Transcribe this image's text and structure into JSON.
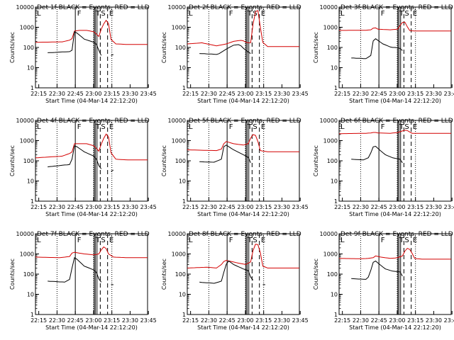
{
  "figure": {
    "background": "#ffffff",
    "event_color": "#000000",
    "lld_color": "#d40000",
    "ylabel": "Counts/sec",
    "xlabel": "Start Time (04-Mar-14 22:12:20)",
    "x_ticks": [
      "22:15",
      "22:30",
      "22:45",
      "23:00",
      "23:15",
      "23:30",
      "23:45"
    ],
    "y_ticks": [
      "1",
      "10",
      "100",
      "1000",
      "10000"
    ],
    "y_scale": "log",
    "ylim": [
      1,
      10000
    ],
    "xlim_minutes": [
      0,
      92
    ],
    "panel_titles": [
      "Det 1f BLACK = Events, RED = LLD",
      "Det 2f BLACK = Events, RED = LLD",
      "Det 3f BLACK = Events, RED = LLD",
      "Det 4f BLACK = Events, RED = LLD",
      "Det 5f BLACK = Events, RED = LLD",
      "Det 6f BLACK = Events, RED = LLD",
      "Det 7f BLACK = Events, RED = LLD",
      "Det 8f BLACK = Events, RED = LLD",
      "Det 9f BLACK = Events, RED = LLD"
    ],
    "markers": [
      "L",
      "F",
      "T",
      "S",
      "E"
    ]
  },
  "chart_data": [
    {
      "type": "line",
      "title": "Det 1f BLACK = Events, RED = LLD",
      "xlabel": "",
      "ylabel": "Counts/sec",
      "y_scale": "log",
      "ylim": [
        1,
        10000
      ],
      "panel_layout": "1,1",
      "x": [
        10,
        13,
        16,
        19,
        22,
        25,
        28,
        30,
        31,
        32,
        34,
        36,
        38,
        40,
        42,
        44,
        46,
        48,
        50,
        52,
        54,
        56,
        58,
        60,
        62,
        64,
        66,
        68,
        70,
        72,
        74,
        76,
        78,
        80,
        82,
        84,
        86,
        88,
        90
      ],
      "series": [
        {
          "name": "BLACK = Events",
          "values": [
            55,
            57,
            56,
            58,
            60,
            62,
            64,
            70,
            450,
            650,
            520,
            380,
            300,
            250,
            210,
            190,
            180,
            170,
            150,
            60,
            40,
            30,
            null,
            null,
            null,
            null,
            null,
            null,
            null,
            null,
            null,
            null,
            null,
            null,
            null,
            null,
            null,
            null,
            null
          ]
        },
        {
          "name": "RED = LLD",
          "values": [
            null,
            null,
            null,
            null,
            null,
            null,
            null,
            null,
            null,
            null,
            null,
            null,
            null,
            null,
            null,
            null,
            null,
            null,
            null,
            null,
            null,
            null,
            null,
            null,
            null,
            null,
            null,
            null,
            null,
            null,
            null,
            null,
            null,
            null,
            null,
            null,
            null,
            null,
            null
          ]
        }
      ]
    }
  ]
}
